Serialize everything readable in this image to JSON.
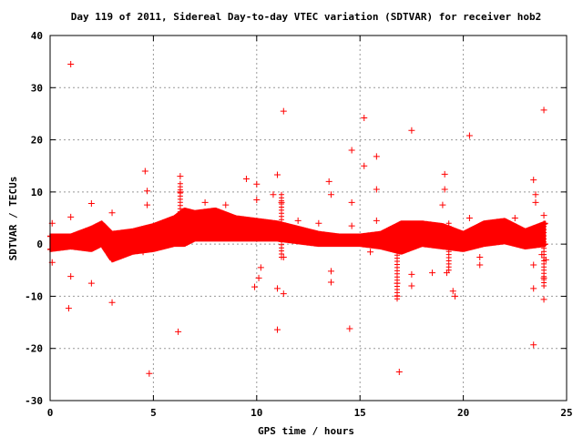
{
  "chart_data": {
    "type": "scatter",
    "title": "Day 119 of 2011, Sidereal Day-to-day VTEC variation (SDTVAR) for receiver hob2",
    "xlabel": "GPS time / hours",
    "ylabel": "SDTVAR / TECUs",
    "xlim": [
      0,
      25
    ],
    "ylim": [
      -30,
      40
    ],
    "x_ticks": [
      "0",
      "5",
      "10",
      "15",
      "20",
      "25"
    ],
    "y_ticks": [
      "-30",
      "-20",
      "-10",
      "0",
      "10",
      "20",
      "30",
      "40"
    ],
    "grid": true,
    "marker": "plus",
    "color": "#ff0000",
    "dense_band": [
      {
        "x": 0.0,
        "lo": -1.0,
        "hi": 1.5
      },
      {
        "x": 1.0,
        "lo": -0.5,
        "hi": 1.5
      },
      {
        "x": 2.0,
        "lo": -1.0,
        "hi": 3.0
      },
      {
        "x": 2.5,
        "lo": 0.0,
        "hi": 4.0
      },
      {
        "x": 3.0,
        "lo": -3.0,
        "hi": 2.0
      },
      {
        "x": 4.0,
        "lo": -1.5,
        "hi": 2.5
      },
      {
        "x": 5.0,
        "lo": -1.0,
        "hi": 3.5
      },
      {
        "x": 6.0,
        "lo": 0.0,
        "hi": 5.0
      },
      {
        "x": 6.5,
        "lo": 0.0,
        "hi": 6.5
      },
      {
        "x": 7.0,
        "lo": 1.0,
        "hi": 6.0
      },
      {
        "x": 8.0,
        "lo": 1.0,
        "hi": 6.5
      },
      {
        "x": 9.0,
        "lo": 1.0,
        "hi": 5.0
      },
      {
        "x": 10.0,
        "lo": 1.0,
        "hi": 4.5
      },
      {
        "x": 11.0,
        "lo": 1.0,
        "hi": 4.0
      },
      {
        "x": 12.0,
        "lo": 0.5,
        "hi": 3.0
      },
      {
        "x": 13.0,
        "lo": 0.0,
        "hi": 2.0
      },
      {
        "x": 14.0,
        "lo": 0.0,
        "hi": 1.5
      },
      {
        "x": 15.0,
        "lo": 0.0,
        "hi": 1.5
      },
      {
        "x": 16.0,
        "lo": -0.5,
        "hi": 2.0
      },
      {
        "x": 17.0,
        "lo": -1.5,
        "hi": 4.0
      },
      {
        "x": 18.0,
        "lo": 0.0,
        "hi": 4.0
      },
      {
        "x": 19.0,
        "lo": -0.5,
        "hi": 3.5
      },
      {
        "x": 20.0,
        "lo": -1.0,
        "hi": 2.0
      },
      {
        "x": 21.0,
        "lo": 0.0,
        "hi": 4.0
      },
      {
        "x": 22.0,
        "lo": 0.5,
        "hi": 4.5
      },
      {
        "x": 23.0,
        "lo": -0.5,
        "hi": 2.5
      },
      {
        "x": 24.0,
        "lo": 0.0,
        "hi": 4.0
      }
    ],
    "points": [
      [
        1.0,
        34.5
      ],
      [
        0.1,
        4.0
      ],
      [
        0.1,
        -3.5
      ],
      [
        1.0,
        5.2
      ],
      [
        1.0,
        -6.2
      ],
      [
        0.9,
        -12.3
      ],
      [
        2.0,
        7.8
      ],
      [
        2.0,
        -7.5
      ],
      [
        3.0,
        6.0
      ],
      [
        3.0,
        -11.2
      ],
      [
        4.6,
        14.0
      ],
      [
        4.7,
        10.2
      ],
      [
        4.7,
        7.5
      ],
      [
        4.8,
        -24.8
      ],
      [
        4.5,
        -1.5
      ],
      [
        6.3,
        13.0
      ],
      [
        6.3,
        10.0
      ],
      [
        6.2,
        -16.8
      ],
      [
        7.5,
        8.0
      ],
      [
        8.5,
        7.5
      ],
      [
        9.5,
        12.5
      ],
      [
        9.9,
        -8.2
      ],
      [
        10.0,
        11.5
      ],
      [
        10.0,
        8.5
      ],
      [
        10.1,
        -6.5
      ],
      [
        10.2,
        -4.5
      ],
      [
        10.8,
        9.5
      ],
      [
        11.0,
        13.3
      ],
      [
        11.0,
        -8.5
      ],
      [
        11.0,
        -16.4
      ],
      [
        11.3,
        25.5
      ],
      [
        11.2,
        8.0
      ],
      [
        11.3,
        -9.5
      ],
      [
        11.3,
        -2.5
      ],
      [
        12.0,
        4.5
      ],
      [
        13.0,
        4.0
      ],
      [
        13.5,
        12.0
      ],
      [
        13.6,
        9.5
      ],
      [
        13.6,
        -5.2
      ],
      [
        13.6,
        -7.3
      ],
      [
        14.5,
        -16.2
      ],
      [
        14.6,
        18.0
      ],
      [
        14.6,
        8.0
      ],
      [
        14.6,
        3.5
      ],
      [
        15.2,
        24.2
      ],
      [
        15.2,
        15.0
      ],
      [
        15.5,
        -1.5
      ],
      [
        15.8,
        16.8
      ],
      [
        15.8,
        10.5
      ],
      [
        15.8,
        4.5
      ],
      [
        16.9,
        -24.5
      ],
      [
        16.8,
        -10.0
      ],
      [
        16.8,
        -7.5
      ],
      [
        17.5,
        21.8
      ],
      [
        17.5,
        -5.8
      ],
      [
        17.5,
        -8.0
      ],
      [
        18.0,
        0.5
      ],
      [
        18.5,
        -5.5
      ],
      [
        19.1,
        13.4
      ],
      [
        19.1,
        10.5
      ],
      [
        19.0,
        7.5
      ],
      [
        19.2,
        -5.5
      ],
      [
        19.5,
        -9.0
      ],
      [
        19.6,
        -10.0
      ],
      [
        20.3,
        20.8
      ],
      [
        20.3,
        5.0
      ],
      [
        20.8,
        -2.5
      ],
      [
        20.8,
        -4.0
      ],
      [
        22.5,
        5.0
      ],
      [
        23.4,
        12.3
      ],
      [
        23.5,
        9.5
      ],
      [
        23.5,
        8.0
      ],
      [
        23.4,
        -19.3
      ],
      [
        23.4,
        -8.5
      ],
      [
        23.4,
        -4.0
      ],
      [
        23.9,
        25.7
      ],
      [
        23.9,
        5.5
      ],
      [
        23.9,
        -6.5
      ],
      [
        23.9,
        -10.6
      ],
      [
        23.8,
        -2.0
      ],
      [
        24.0,
        -3.0
      ]
    ],
    "spikes": [
      {
        "x": 6.3,
        "lo": 2.0,
        "hi": 12.0
      },
      {
        "x": 11.2,
        "lo": -2.5,
        "hi": 9.5
      },
      {
        "x": 16.8,
        "lo": -10.5,
        "hi": 1.0
      },
      {
        "x": 19.3,
        "lo": -5.0,
        "hi": 4.0
      },
      {
        "x": 23.9,
        "lo": -8.0,
        "hi": 4.0
      }
    ]
  }
}
